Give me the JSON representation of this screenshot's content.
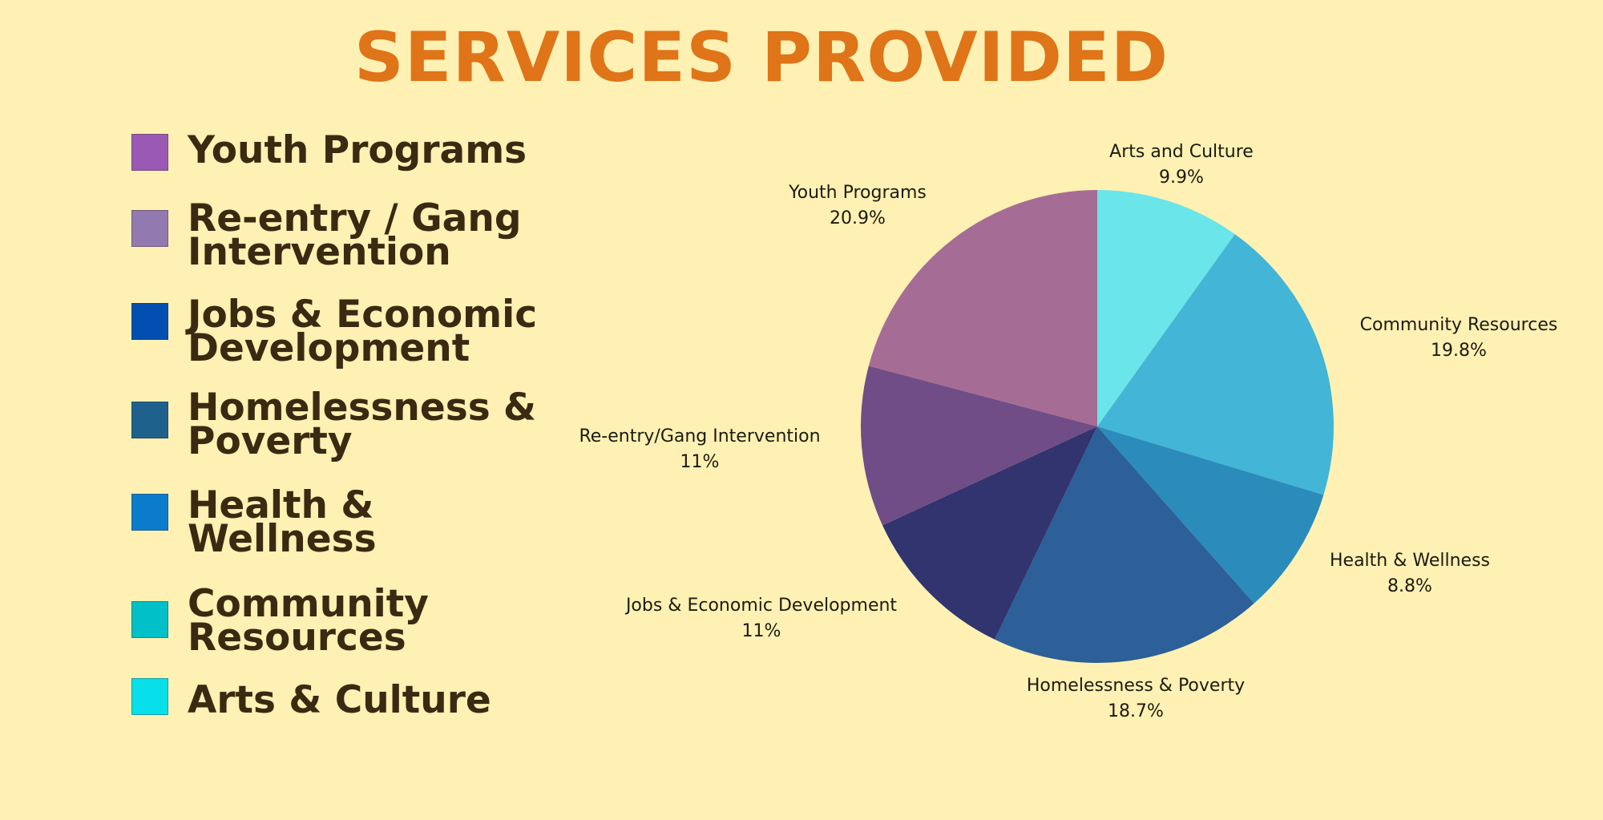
{
  "page": {
    "title": "SERVICES PROVIDED"
  },
  "legend": {
    "items": [
      {
        "label": "Youth Programs",
        "color": "#9b59b6"
      },
      {
        "label": "Re-entry / Gang\nIntervention",
        "color": "#9279b0"
      },
      {
        "label": "Jobs & Economic\nDevelopment",
        "color": "#034fb1"
      },
      {
        "label": "Homelessness &\nPoverty",
        "color": "#1f618d"
      },
      {
        "label": "Health &\nWellness",
        "color": "#0b7ccc"
      },
      {
        "label": "Community\nResources",
        "color": "#02c0c7"
      },
      {
        "label": "Arts & Culture",
        "color": "#07e0ea"
      }
    ]
  },
  "chart_data": {
    "type": "pie",
    "title": "",
    "start_angle_deg": 0,
    "direction": "clockwise",
    "slices": [
      {
        "label": "Arts and Culture",
        "value_label": "9.9%",
        "value": 9.9,
        "color": "#6ae5ea"
      },
      {
        "label": "Community Resources",
        "value_label": "19.8%",
        "value": 19.8,
        "color": "#43b5d6"
      },
      {
        "label": "Health & Wellness",
        "value_label": "8.8%",
        "value": 8.8,
        "color": "#2b8cbb"
      },
      {
        "label": "Homelessness & Poverty",
        "value_label": "18.7%",
        "value": 18.7,
        "color": "#2d5f98"
      },
      {
        "label": "Jobs & Economic Development",
        "value_label": "11%",
        "value": 11.0,
        "color": "#31346e"
      },
      {
        "label": "Re-entry/Gang Intervention",
        "value_label": "11%",
        "value": 11.0,
        "color": "#704d86"
      },
      {
        "label": "Youth Programs",
        "value_label": "20.9%",
        "value": 20.9,
        "color": "#a56d96"
      }
    ]
  }
}
